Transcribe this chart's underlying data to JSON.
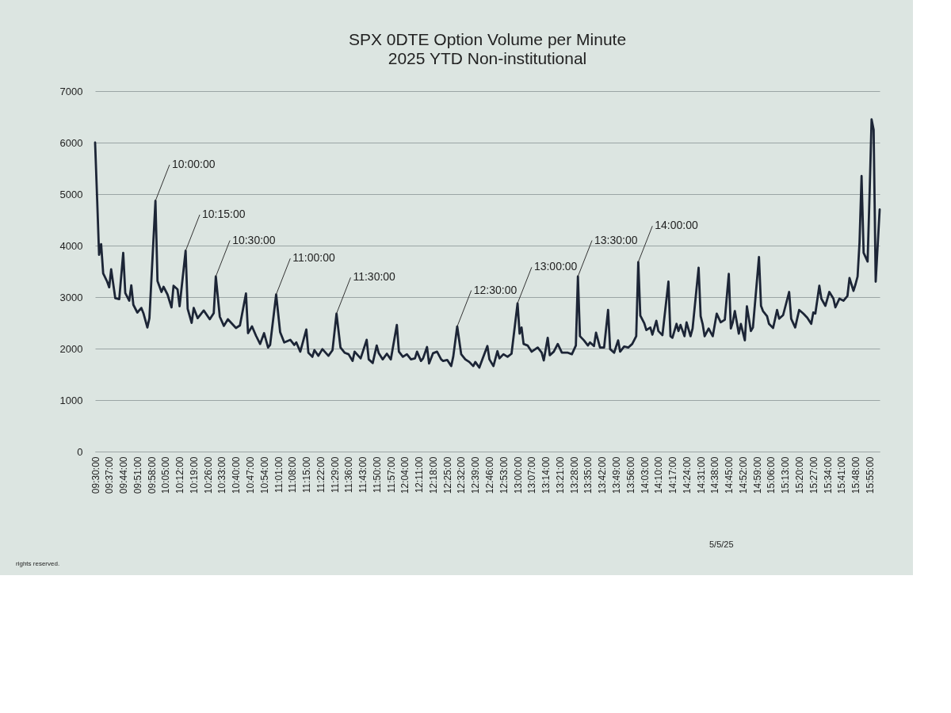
{
  "chart_data": {
    "type": "line",
    "title": "SPX 0DTE Option Volume per Minute",
    "subtitle": "2025 YTD Non-institutional",
    "x": [
      9.5,
      9.517,
      9.533,
      9.55,
      9.567,
      9.6,
      9.617,
      9.633,
      9.667,
      9.7,
      9.733,
      9.75,
      9.783,
      9.8,
      9.817,
      9.85,
      9.883,
      9.9,
      9.933,
      9.95,
      10.0,
      10.017,
      10.05,
      10.067,
      10.1,
      10.133,
      10.15,
      10.183,
      10.2,
      10.25,
      10.267,
      10.3,
      10.317,
      10.35,
      10.4,
      10.45,
      10.483,
      10.5,
      10.533,
      10.567,
      10.6,
      10.667,
      10.7,
      10.75,
      10.767,
      10.8,
      10.833,
      10.867,
      10.9,
      10.933,
      10.95,
      11.0,
      11.033,
      11.067,
      11.117,
      11.15,
      11.167,
      11.2,
      11.25,
      11.267,
      11.3,
      11.317,
      11.35,
      11.383,
      11.433,
      11.467,
      11.5,
      11.533,
      11.567,
      11.6,
      11.633,
      11.65,
      11.7,
      11.75,
      11.767,
      11.8,
      11.833,
      11.85,
      11.883,
      11.917,
      11.95,
      12.0,
      12.017,
      12.05,
      12.083,
      12.117,
      12.15,
      12.167,
      12.2,
      12.217,
      12.25,
      12.267,
      12.3,
      12.333,
      12.367,
      12.383,
      12.417,
      12.45,
      12.467,
      12.5,
      12.533,
      12.567,
      12.6,
      12.633,
      12.65,
      12.683,
      12.7,
      12.75,
      12.767,
      12.8,
      12.833,
      12.85,
      12.883,
      12.917,
      12.95,
      13.0,
      13.017,
      13.033,
      13.05,
      13.083,
      13.117,
      13.167,
      13.2,
      13.217,
      13.25,
      13.267,
      13.3,
      13.333,
      13.367,
      13.417,
      13.45,
      13.483,
      13.5,
      13.517,
      13.55,
      13.583,
      13.6,
      13.633,
      13.65,
      13.683,
      13.717,
      13.75,
      13.767,
      13.8,
      13.833,
      13.85,
      13.883,
      13.917,
      13.95,
      13.983,
      14.0,
      14.017,
      14.05,
      14.067,
      14.1,
      14.117,
      14.15,
      14.167,
      14.2,
      14.25,
      14.267,
      14.283,
      14.317,
      14.333,
      14.35,
      14.383,
      14.4,
      14.433,
      14.45,
      14.5,
      14.517,
      14.533,
      14.55,
      14.583,
      14.617,
      14.65,
      14.683,
      14.717,
      14.75,
      14.767,
      14.783,
      14.8,
      14.833,
      14.85,
      14.883,
      14.9,
      14.933,
      14.95,
      15.0,
      15.017,
      15.033,
      15.067,
      15.083,
      15.117,
      15.15,
      15.167,
      15.2,
      15.25,
      15.267,
      15.3,
      15.333,
      15.367,
      15.4,
      15.433,
      15.45,
      15.467,
      15.5,
      15.517,
      15.55,
      15.583,
      15.617,
      15.633,
      15.667,
      15.7,
      15.733,
      15.75,
      15.783,
      15.8,
      15.817,
      15.833,
      15.85,
      15.867,
      15.9,
      15.917,
      15.933,
      15.95,
      15.967,
      16.0
    ],
    "series": [
      {
        "color": "#1c2536",
        "values": [
          6000,
          4900,
          3820,
          4030,
          3460,
          3300,
          3190,
          3540,
          2980,
          2960,
          3860,
          3080,
          2930,
          3230,
          2850,
          2700,
          2790,
          2690,
          2410,
          2590,
          4870,
          3310,
          3100,
          3200,
          3050,
          2800,
          3220,
          3150,
          2820,
          3900,
          2770,
          2500,
          2790,
          2590,
          2740,
          2570,
          2690,
          3400,
          2620,
          2440,
          2570,
          2400,
          2450,
          3070,
          2300,
          2430,
          2250,
          2090,
          2300,
          2020,
          2070,
          3050,
          2320,
          2120,
          2170,
          2070,
          2120,
          1940,
          2370,
          1920,
          1840,
          1970,
          1860,
          1990,
          1860,
          1970,
          2680,
          2020,
          1920,
          1890,
          1760,
          1940,
          1810,
          2170,
          1790,
          1720,
          2060,
          1910,
          1790,
          1900,
          1790,
          2460,
          1940,
          1840,
          1890,
          1790,
          1810,
          1940,
          1760,
          1810,
          2030,
          1710,
          1910,
          1940,
          1790,
          1760,
          1780,
          1660,
          1840,
          2430,
          1890,
          1790,
          1740,
          1660,
          1740,
          1630,
          1740,
          2050,
          1790,
          1660,
          1950,
          1810,
          1890,
          1840,
          1900,
          2880,
          2290,
          2410,
          2090,
          2060,
          1940,
          2020,
          1920,
          1770,
          2210,
          1870,
          1940,
          2090,
          1920,
          1920,
          1890,
          2060,
          3400,
          2240,
          2160,
          2060,
          2120,
          2050,
          2310,
          2020,
          2020,
          2750,
          1990,
          1920,
          2160,
          1940,
          2040,
          2020,
          2090,
          2240,
          3680,
          2640,
          2490,
          2360,
          2410,
          2270,
          2540,
          2340,
          2260,
          3300,
          2240,
          2210,
          2480,
          2340,
          2460,
          2240,
          2510,
          2240,
          2390,
          3570,
          2630,
          2480,
          2240,
          2390,
          2240,
          2680,
          2510,
          2560,
          3450,
          2390,
          2510,
          2730,
          2290,
          2480,
          2160,
          2820,
          2340,
          2410,
          3780,
          2830,
          2730,
          2630,
          2480,
          2400,
          2750,
          2580,
          2650,
          3100,
          2580,
          2410,
          2750,
          2680,
          2600,
          2480,
          2700,
          2680,
          3220,
          2970,
          2830,
          3100,
          2970,
          2800,
          2970,
          2930,
          3020,
          3370,
          3120,
          3250,
          3400,
          4060,
          5350,
          3860,
          3690,
          5050,
          6450,
          6250,
          3300,
          4700
        ]
      }
    ],
    "xlim": [
      9.5,
      16.0
    ],
    "xticks": [
      {
        "value": 9.5,
        "label": "09:30:00"
      },
      {
        "value": 9.61667,
        "label": "09:37:00"
      },
      {
        "value": 9.73333,
        "label": "09:44:00"
      },
      {
        "value": 9.85,
        "label": "09:51:00"
      },
      {
        "value": 9.96667,
        "label": "09:58:00"
      },
      {
        "value": 10.08333,
        "label": "10:05:00"
      },
      {
        "value": 10.2,
        "label": "10:12:00"
      },
      {
        "value": 10.31667,
        "label": "10:19:00"
      },
      {
        "value": 10.43333,
        "label": "10:26:00"
      },
      {
        "value": 10.55,
        "label": "10:33:00"
      },
      {
        "value": 10.66667,
        "label": "10:40:00"
      },
      {
        "value": 10.78333,
        "label": "10:47:00"
      },
      {
        "value": 10.9,
        "label": "10:54:00"
      },
      {
        "value": 11.01667,
        "label": "11:01:00"
      },
      {
        "value": 11.13333,
        "label": "11:08:00"
      },
      {
        "value": 11.25,
        "label": "11:15:00"
      },
      {
        "value": 11.36667,
        "label": "11:22:00"
      },
      {
        "value": 11.48333,
        "label": "11:29:00"
      },
      {
        "value": 11.6,
        "label": "11:36:00"
      },
      {
        "value": 11.71667,
        "label": "11:43:00"
      },
      {
        "value": 11.83333,
        "label": "11:50:00"
      },
      {
        "value": 11.95,
        "label": "11:57:00"
      },
      {
        "value": 12.06667,
        "label": "12:04:00"
      },
      {
        "value": 12.18333,
        "label": "12:11:00"
      },
      {
        "value": 12.3,
        "label": "12:18:00"
      },
      {
        "value": 12.41667,
        "label": "12:25:00"
      },
      {
        "value": 12.53333,
        "label": "12:32:00"
      },
      {
        "value": 12.65,
        "label": "12:39:00"
      },
      {
        "value": 12.76667,
        "label": "12:46:00"
      },
      {
        "value": 12.88333,
        "label": "12:53:00"
      },
      {
        "value": 13.0,
        "label": "13:00:00"
      },
      {
        "value": 13.11667,
        "label": "13:07:00"
      },
      {
        "value": 13.23333,
        "label": "13:14:00"
      },
      {
        "value": 13.35,
        "label": "13:21:00"
      },
      {
        "value": 13.46667,
        "label": "13:28:00"
      },
      {
        "value": 13.58333,
        "label": "13:35:00"
      },
      {
        "value": 13.7,
        "label": "13:42:00"
      },
      {
        "value": 13.81667,
        "label": "13:49:00"
      },
      {
        "value": 13.93333,
        "label": "13:56:00"
      },
      {
        "value": 14.05,
        "label": "14:03:00"
      },
      {
        "value": 14.16667,
        "label": "14:10:00"
      },
      {
        "value": 14.28333,
        "label": "14:17:00"
      },
      {
        "value": 14.4,
        "label": "14:24:00"
      },
      {
        "value": 14.51667,
        "label": "14:31:00"
      },
      {
        "value": 14.63333,
        "label": "14:38:00"
      },
      {
        "value": 14.75,
        "label": "14:45:00"
      },
      {
        "value": 14.86667,
        "label": "14:52:00"
      },
      {
        "value": 14.98333,
        "label": "14:59:00"
      },
      {
        "value": 15.1,
        "label": "15:06:00"
      },
      {
        "value": 15.21667,
        "label": "15:13:00"
      },
      {
        "value": 15.33333,
        "label": "15:20:00"
      },
      {
        "value": 15.45,
        "label": "15:27:00"
      },
      {
        "value": 15.56667,
        "label": "15:34:00"
      },
      {
        "value": 15.68333,
        "label": "15:41:00"
      },
      {
        "value": 15.8,
        "label": "15:48:00"
      },
      {
        "value": 15.91667,
        "label": "15:55:00"
      }
    ],
    "ylim": [
      0,
      7000
    ],
    "yticks": [
      0,
      1000,
      2000,
      3000,
      4000,
      5000,
      6000,
      7000
    ],
    "grid": "y",
    "line_style": "solid",
    "annotations": [
      {
        "text": "10:00:00",
        "x": 10.0,
        "y": 4870
      },
      {
        "text": "10:15:00",
        "x": 10.25,
        "y": 3900
      },
      {
        "text": "10:30:00",
        "x": 10.5,
        "y": 3400
      },
      {
        "text": "11:00:00",
        "x": 11.0,
        "y": 3050
      },
      {
        "text": "11:30:00",
        "x": 11.5,
        "y": 2680
      },
      {
        "text": "12:30:00",
        "x": 12.5,
        "y": 2430
      },
      {
        "text": "13:00:00",
        "x": 13.0,
        "y": 2880
      },
      {
        "text": "13:30:00",
        "x": 13.5,
        "y": 3400
      },
      {
        "text": "14:00:00",
        "x": 14.0,
        "y": 3680
      },
      "5/5/25",
      "rights reserved."
    ]
  }
}
